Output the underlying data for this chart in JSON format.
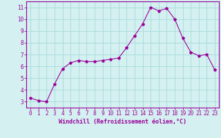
{
  "x": [
    0,
    1,
    2,
    3,
    4,
    5,
    6,
    7,
    8,
    9,
    10,
    11,
    12,
    13,
    14,
    15,
    16,
    17,
    18,
    19,
    20,
    21,
    22,
    23
  ],
  "y": [
    3.3,
    3.1,
    3.0,
    4.5,
    5.8,
    6.3,
    6.5,
    6.4,
    6.4,
    6.5,
    6.6,
    6.7,
    7.6,
    8.6,
    9.6,
    11.0,
    10.7,
    10.9,
    10.0,
    8.4,
    7.2,
    6.9,
    7.0,
    5.7
  ],
  "line_color": "#990099",
  "marker": "*",
  "marker_size": 3,
  "bg_color": "#d4f0f0",
  "grid_color": "#aadddd",
  "xlabel": "Windchill (Refroidissement éolien,°C)",
  "xlabel_color": "#990099",
  "tick_color": "#990099",
  "ylabel_ticks": [
    3,
    4,
    5,
    6,
    7,
    8,
    9,
    10,
    11
  ],
  "xlim": [
    -0.5,
    23.5
  ],
  "ylim": [
    2.5,
    11.5
  ],
  "tick_fontsize": 5.5,
  "xlabel_fontsize": 6.0
}
